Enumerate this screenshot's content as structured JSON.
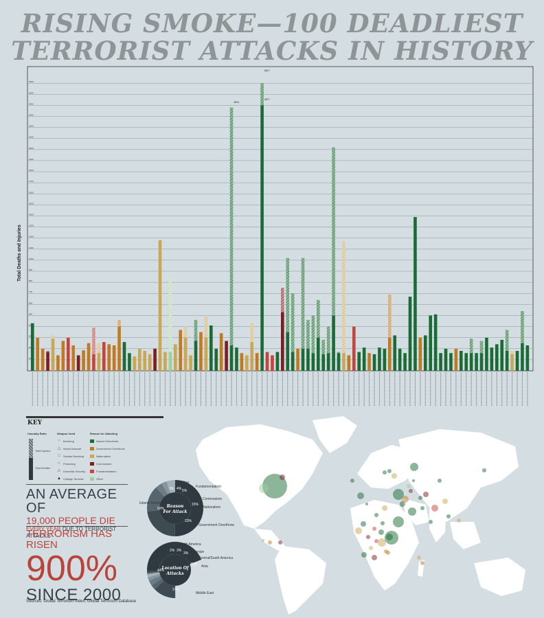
{
  "title": "RISING SMOKE—100 DEADLIEST TERRORIST ATTACKS IN HISTORY",
  "colors": {
    "islamic": "#1a6b35",
    "government": "#c07a22",
    "nationalism": "#c9a855",
    "communism": "#7b1f22",
    "fundamentalism": "#c5453e",
    "other": "#9fd09a",
    "bg": "#d4dde2",
    "map": "#ffffff"
  },
  "chart_data": {
    "type": "bar",
    "ylabel": "Total Deaths and Injuries",
    "yticks": [
      "100",
      "200",
      "300",
      "400",
      "500",
      "600",
      "700",
      "800",
      "900",
      "1000",
      "1100",
      "1200",
      "1300",
      "1400",
      "1500",
      "1600",
      "1700",
      "1800",
      "1900",
      "2000",
      "2100",
      "2200",
      "2300",
      "2400",
      "2500",
      "2600"
    ],
    "annotations": [
      "4524",
      "3877",
      "5617"
    ],
    "bars": [
      {
        "d": 430,
        "t": 430,
        "r": "islamic"
      },
      {
        "d": 300,
        "t": 300,
        "r": "government"
      },
      {
        "d": 200,
        "t": 200,
        "r": "government"
      },
      {
        "d": 170,
        "t": 180,
        "r": "communism"
      },
      {
        "d": 290,
        "t": 320,
        "r": "nationalism"
      },
      {
        "d": 140,
        "t": 140,
        "r": "government"
      },
      {
        "d": 270,
        "t": 270,
        "r": "government"
      },
      {
        "d": 300,
        "t": 300,
        "r": "fundamentalism"
      },
      {
        "d": 230,
        "t": 230,
        "r": "government"
      },
      {
        "d": 140,
        "t": 140,
        "r": "communism"
      },
      {
        "d": 185,
        "t": 185,
        "r": "government"
      },
      {
        "d": 250,
        "t": 250,
        "r": "government"
      },
      {
        "d": 150,
        "t": 390,
        "r": "fundamentalism"
      },
      {
        "d": 160,
        "t": 250,
        "r": "nationalism"
      },
      {
        "d": 260,
        "t": 260,
        "r": "fundamentalism"
      },
      {
        "d": 240,
        "t": 240,
        "r": "government"
      },
      {
        "d": 230,
        "t": 230,
        "r": "government"
      },
      {
        "d": 400,
        "t": 460,
        "r": "government"
      },
      {
        "d": 260,
        "t": 260,
        "r": "islamic"
      },
      {
        "d": 160,
        "t": 160,
        "r": "islamic"
      },
      {
        "d": 130,
        "t": 130,
        "r": "nationalism"
      },
      {
        "d": 200,
        "t": 200,
        "r": "nationalism"
      },
      {
        "d": 180,
        "t": 180,
        "r": "nationalism"
      },
      {
        "d": 150,
        "t": 150,
        "r": "nationalism"
      },
      {
        "d": 200,
        "t": 200,
        "r": "communism"
      },
      {
        "d": 1180,
        "t": 1180,
        "r": "nationalism"
      },
      {
        "d": 170,
        "t": 170,
        "r": "nationalism"
      },
      {
        "d": 170,
        "t": 840,
        "r": "other"
      },
      {
        "d": 240,
        "t": 240,
        "r": "nationalism"
      },
      {
        "d": 370,
        "t": 370,
        "r": "government"
      },
      {
        "d": 300,
        "t": 400,
        "r": "nationalism"
      },
      {
        "d": 140,
        "t": 140,
        "r": "nationalism"
      },
      {
        "d": 270,
        "t": 460,
        "r": "islamic"
      },
      {
        "d": 350,
        "t": 350,
        "r": "government"
      },
      {
        "d": 300,
        "t": 490,
        "r": "nationalism"
      },
      {
        "d": 410,
        "t": 410,
        "r": "islamic"
      },
      {
        "d": 200,
        "t": 200,
        "r": "islamic"
      },
      {
        "d": 340,
        "t": 340,
        "r": "government"
      },
      {
        "d": 270,
        "t": 270,
        "r": "communism"
      },
      {
        "d": 230,
        "t": 2380,
        "r": "islamic"
      },
      {
        "d": 210,
        "t": 210,
        "r": "islamic"
      },
      {
        "d": 160,
        "t": 160,
        "r": "government"
      },
      {
        "d": 140,
        "t": 140,
        "r": "nationalism"
      },
      {
        "d": 260,
        "t": 430,
        "r": "nationalism"
      },
      {
        "d": 160,
        "t": 160,
        "r": "government"
      },
      {
        "d": 2400,
        "t": 2600,
        "r": "islamic"
      },
      {
        "d": 170,
        "t": 170,
        "r": "fundamentalism"
      },
      {
        "d": 140,
        "t": 140,
        "r": "fundamentalism"
      },
      {
        "d": 170,
        "t": 170,
        "r": "islamic"
      },
      {
        "d": 530,
        "t": 750,
        "r": "communism"
      },
      {
        "d": 350,
        "t": 1020,
        "r": "islamic"
      },
      {
        "d": 170,
        "t": 700,
        "r": "islamic"
      },
      {
        "d": 200,
        "t": 200,
        "r": "government"
      },
      {
        "d": 200,
        "t": 1020,
        "r": "islamic"
      },
      {
        "d": 200,
        "t": 460,
        "r": "islamic"
      },
      {
        "d": 160,
        "t": 500,
        "r": "islamic"
      },
      {
        "d": 300,
        "t": 640,
        "r": "islamic"
      },
      {
        "d": 150,
        "t": 280,
        "r": "islamic"
      },
      {
        "d": 160,
        "t": 400,
        "r": "islamic"
      },
      {
        "d": 500,
        "t": 2020,
        "r": "islamic"
      },
      {
        "d": 160,
        "t": 170,
        "r": "islamic"
      },
      {
        "d": 160,
        "t": 1170,
        "r": "nationalism"
      },
      {
        "d": 140,
        "t": 140,
        "r": "government"
      },
      {
        "d": 400,
        "t": 400,
        "r": "fundamentalism"
      },
      {
        "d": 170,
        "t": 170,
        "r": "islamic"
      },
      {
        "d": 210,
        "t": 210,
        "r": "islamic"
      },
      {
        "d": 160,
        "t": 160,
        "r": "government"
      },
      {
        "d": 150,
        "t": 150,
        "r": "islamic"
      },
      {
        "d": 210,
        "t": 210,
        "r": "islamic"
      },
      {
        "d": 200,
        "t": 200,
        "r": "islamic"
      },
      {
        "d": 300,
        "t": 690,
        "r": "government"
      },
      {
        "d": 320,
        "t": 320,
        "r": "islamic"
      },
      {
        "d": 200,
        "t": 200,
        "r": "islamic"
      },
      {
        "d": 160,
        "t": 160,
        "r": "islamic"
      },
      {
        "d": 670,
        "t": 670,
        "r": "islamic"
      },
      {
        "d": 1390,
        "t": 1390,
        "r": "islamic"
      },
      {
        "d": 300,
        "t": 300,
        "r": "government"
      },
      {
        "d": 320,
        "t": 320,
        "r": "islamic"
      },
      {
        "d": 500,
        "t": 500,
        "r": "islamic"
      },
      {
        "d": 510,
        "t": 510,
        "r": "islamic"
      },
      {
        "d": 160,
        "t": 160,
        "r": "islamic"
      },
      {
        "d": 200,
        "t": 200,
        "r": "islamic"
      },
      {
        "d": 160,
        "t": 160,
        "r": "islamic"
      },
      {
        "d": 200,
        "t": 200,
        "r": "government"
      },
      {
        "d": 180,
        "t": 180,
        "r": "islamic"
      },
      {
        "d": 160,
        "t": 160,
        "r": "islamic"
      },
      {
        "d": 160,
        "t": 290,
        "r": "islamic"
      },
      {
        "d": 160,
        "t": 160,
        "r": "islamic"
      },
      {
        "d": 160,
        "t": 270,
        "r": "islamic"
      },
      {
        "d": 300,
        "t": 300,
        "r": "islamic"
      },
      {
        "d": 210,
        "t": 210,
        "r": "islamic"
      },
      {
        "d": 240,
        "t": 240,
        "r": "islamic"
      },
      {
        "d": 280,
        "t": 280,
        "r": "islamic"
      },
      {
        "d": 180,
        "t": 370,
        "r": "islamic"
      },
      {
        "d": 150,
        "t": 180,
        "r": "nationalism"
      },
      {
        "d": 180,
        "t": 180,
        "r": "islamic"
      },
      {
        "d": 250,
        "t": 540,
        "r": "islamic"
      },
      {
        "d": 230,
        "t": 230,
        "r": "islamic"
      }
    ]
  },
  "key": {
    "heading": "KEY",
    "col1": "Casualty Ratio",
    "col2": "Weapon Used",
    "col3": "Reason for Attacking",
    "ratio_total": "Total Injuries",
    "ratio_deaths": "Total Deaths",
    "weapons": [
      "Bombing",
      "Armed Assault",
      "Suicide Bombing",
      "Poisoning",
      "Domestic Security",
      "Cottage Terrorist"
    ],
    "reasons": [
      "Islamic Extremists",
      "Government Overthrow",
      "Nationalism",
      "Communism",
      "Fundamentalism",
      "Other"
    ]
  },
  "stats": {
    "line1": "AN AVERAGE OF",
    "line2": "19,000 PEOPLE DIE",
    "line3a": "EVERY YEAR",
    "line3b": " DUE TO TERRORIST ATTACKS",
    "line4": "TERRORISM HAS RISEN",
    "line5": "900%",
    "line6": "SINCE 2000"
  },
  "sources": "Sources: Global Terrorism Index, Global Terrorism Database",
  "donut1": {
    "center": [
      "Reason",
      "For Attack"
    ],
    "labels": {
      "other": "Other",
      "fund": "Fundamentalism",
      "comm": "Communism",
      "nat": "Nationalism",
      "gov": "Government Overthrow",
      "isl": "Islamic Extremists"
    },
    "pcts": [
      "50%",
      "15%",
      "23%",
      "4%",
      "3%",
      "5%"
    ]
  },
  "donut2": {
    "center": [
      "Location Of",
      "Attacks"
    ],
    "labels": {
      "na": "North America",
      "eu": "Europe",
      "csa": "Central/South America",
      "asia": "Asia",
      "me": "Middle East",
      "af": "Africa"
    },
    "pcts": [
      "44%",
      "3%",
      "3%",
      "11%",
      "37%",
      "2%"
    ]
  }
}
